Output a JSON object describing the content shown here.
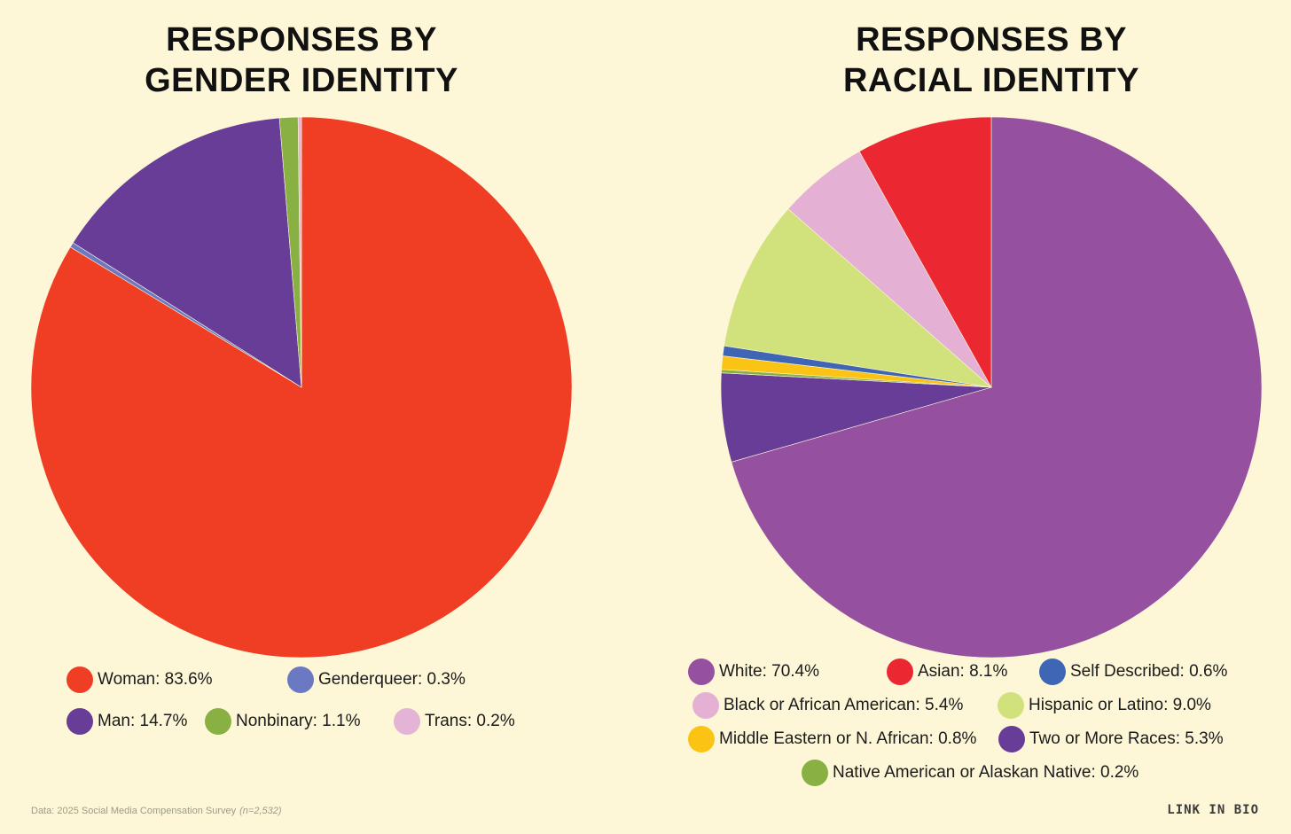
{
  "chart_data": [
    {
      "type": "pie",
      "title": [
        "RESPONSES BY",
        "GENDER IDENTITY"
      ],
      "slices": [
        {
          "label": "Woman",
          "value": 83.6,
          "color": "#ef3e24"
        },
        {
          "label": "Genderqueer",
          "value": 0.3,
          "color": "#6b78c2"
        },
        {
          "label": "Man",
          "value": 14.7,
          "color": "#673d97"
        },
        {
          "label": "Nonbinary",
          "value": 1.1,
          "color": "#88b042"
        },
        {
          "label": "Trans",
          "value": 0.2,
          "color": "#e4b4d6"
        }
      ],
      "legend": [
        {
          "text": "Woman: 83.6%",
          "color": "#ef3e24"
        },
        {
          "text": "Genderqueer: 0.3%",
          "color": "#6b78c2"
        },
        {
          "text": "Man: 14.7%",
          "color": "#673d97"
        },
        {
          "text": "Nonbinary: 1.1%",
          "color": "#88b042"
        },
        {
          "text": "Trans: 0.2%",
          "color": "#e4b4d6"
        }
      ]
    },
    {
      "type": "pie",
      "title": [
        "RESPONSES BY",
        "RACIAL IDENTITY"
      ],
      "slices": [
        {
          "label": "White",
          "value": 70.4,
          "color": "#95509f"
        },
        {
          "label": "Two or More Races",
          "value": 5.3,
          "color": "#673d97"
        },
        {
          "label": "Native American or Alaskan Native",
          "value": 0.2,
          "color": "#88b042"
        },
        {
          "label": "Middle Eastern or N. African",
          "value": 0.8,
          "color": "#fbc414"
        },
        {
          "label": "Self Described",
          "value": 0.6,
          "color": "#3f66b4"
        },
        {
          "label": "Hispanic or Latino",
          "value": 9.0,
          "color": "#d1e17b"
        },
        {
          "label": "Black or African American",
          "value": 5.4,
          "color": "#e4b1d4"
        },
        {
          "label": "Asian",
          "value": 8.1,
          "color": "#eb2832"
        }
      ],
      "legend": [
        {
          "text": "White: 70.4%",
          "color": "#95509f"
        },
        {
          "text": "Asian: 8.1%",
          "color": "#eb2832"
        },
        {
          "text": "Self Described: 0.6%",
          "color": "#3f66b4"
        },
        {
          "text": "Black or African American: 5.4%",
          "color": "#e4b1d4"
        },
        {
          "text": "Hispanic or Latino: 9.0%",
          "color": "#d1e17b"
        },
        {
          "text": "Middle Eastern or N. African: 0.8%",
          "color": "#fbc414"
        },
        {
          "text": "Two or More Races: 5.3%",
          "color": "#673d97"
        },
        {
          "text": "Native American or Alaskan Native: 0.2%",
          "color": "#88b042"
        }
      ]
    }
  ],
  "footnote": {
    "text": "Data: 2025 Social Media Compensation Survey",
    "sample": "(n=2,532)"
  },
  "brand": "LINK IN BIO",
  "colors": {
    "background": "#fdf7d8"
  }
}
